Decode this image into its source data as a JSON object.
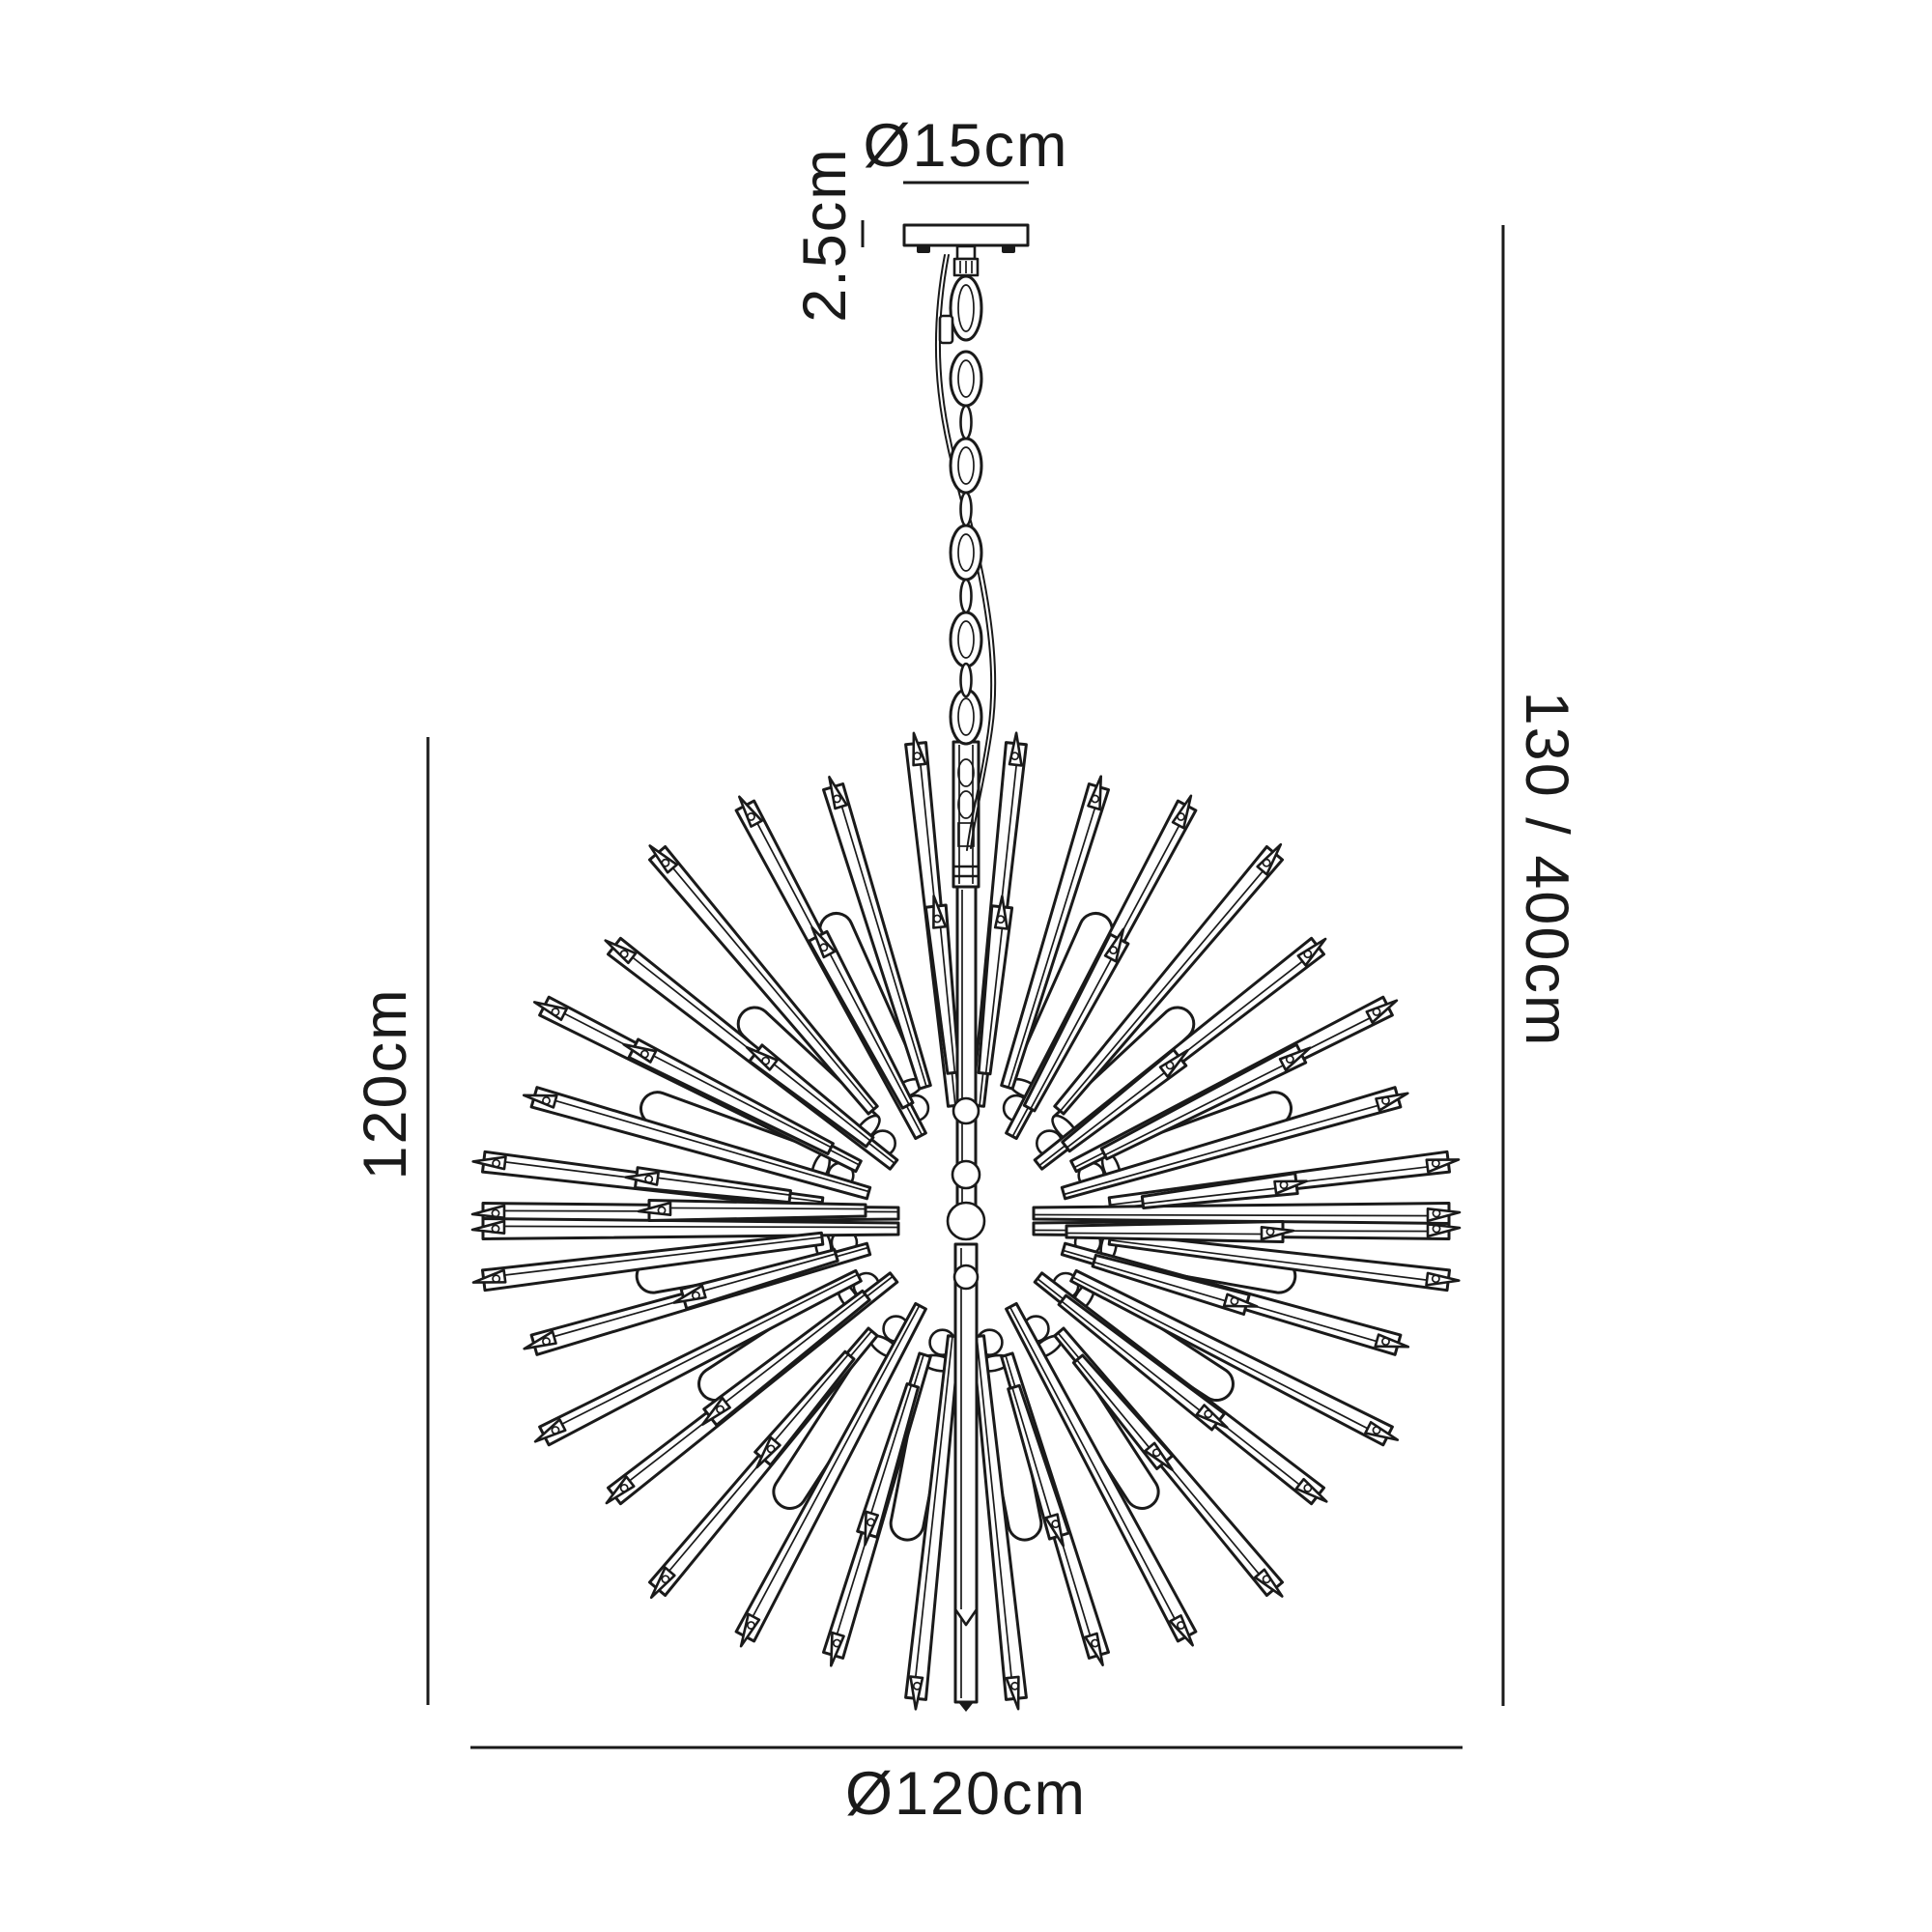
{
  "page": {
    "title": "Sputnik chandelier dimension diagram"
  },
  "colors": {
    "ink": "#1a1a1a",
    "background": "#ffffff"
  },
  "dimensions": {
    "canopy_diameter": "Ø15cm",
    "canopy_height": "2.5cm",
    "body_height": "120cm",
    "body_diameter": "Ø120cm",
    "drop_height": "130 / 400cm"
  }
}
